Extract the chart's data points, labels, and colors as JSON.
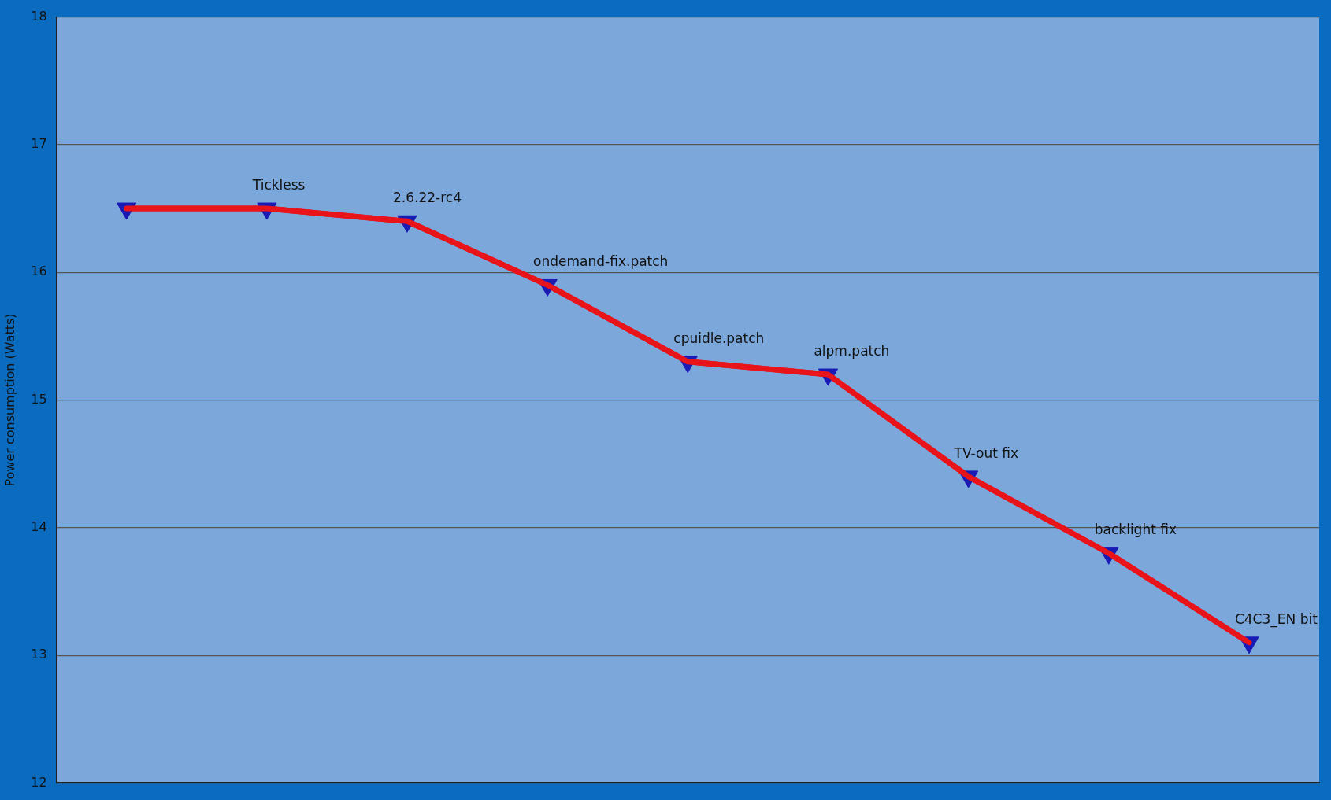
{
  "chart_data": {
    "type": "line",
    "ylabel": "Power consumption (Watts)",
    "categories": [
      null,
      "Tickless",
      "2.6.22-rc4",
      "ondemand-fix.patch",
      "cpuidle.patch",
      "alpm.patch",
      "TV-out fix",
      "backlight fix",
      "C4C3_EN bit"
    ],
    "series": [
      {
        "color": "#e8141a",
        "values": [
          16.5,
          16.5,
          16.4,
          15.9,
          15.3,
          15.2,
          14.4,
          13.8,
          13.1
        ]
      }
    ],
    "ylim": [
      12,
      18
    ],
    "yticks": [
      12,
      13,
      14,
      15,
      16,
      17,
      18
    ],
    "grid": "y",
    "legend": false,
    "tick_labels": "y",
    "marker": "triangle",
    "line_style": "solid"
  }
}
